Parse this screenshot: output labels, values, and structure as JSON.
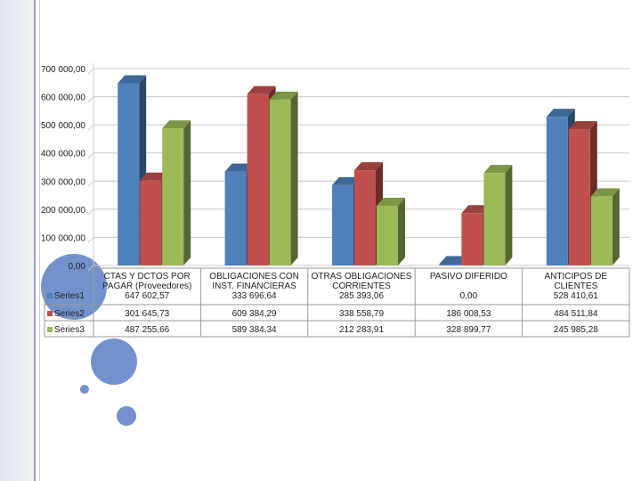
{
  "chart_data": {
    "type": "bar",
    "variant": "3d-clustered-column-with-data-table",
    "categories": [
      "CTAS Y DCTOS POR PAGAR (Proveedores)",
      "OBLIGACIONES CON INST. FINANCIERAS",
      "OTRAS OBLIGACIONES CORRIENTES",
      "PASIVO DIFERIDO",
      "ANTICIPOS DE CLIENTES"
    ],
    "series": [
      {
        "name": "Series1",
        "values": [
          647602.57,
          333696.64,
          285393.06,
          0,
          528410.61
        ]
      },
      {
        "name": "Series2",
        "values": [
          301645.73,
          609384.29,
          338558.79,
          186008.53,
          484511.84
        ]
      },
      {
        "name": "Series3",
        "values": [
          487255.66,
          589384.34,
          212283.91,
          328899.77,
          245985.28
        ]
      }
    ],
    "table_values": {
      "Series1": [
        "647 602,57",
        "333 696,64",
        "285 393,06",
        "0,00",
        "528 410,61"
      ],
      "Series2": [
        "301 645,73",
        "609 384,29",
        "338 558,79",
        "186 008,53",
        "484 511,84"
      ],
      "Series3": [
        "487 255,66",
        "589 384,34",
        "212 283,91",
        "328 899,77",
        "245 985,28"
      ]
    },
    "y_ticks": [
      "0,00",
      "100 000,00",
      "200 000,00",
      "300 000,00",
      "400 000,00",
      "500 000,00",
      "600 000,00",
      "700 000,00"
    ],
    "ylim": [
      0,
      700000
    ],
    "grid": true,
    "legend": "data-table-left",
    "colors": {
      "series1": "#4f81bd",
      "series2": "#c0504d",
      "series3": "#9bbb59"
    }
  }
}
